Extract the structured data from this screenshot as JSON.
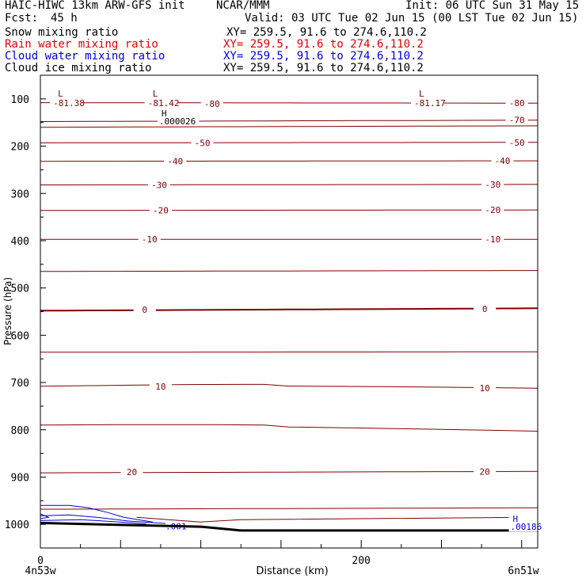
{
  "header": {
    "title_left": "HAIC-HIWC 13km ARW-GFS init",
    "org": "NCAR/MMM",
    "init": "Init: 06 UTC Sun 31 May 15",
    "fcst_label": "Fcst:",
    "fcst_value": "45 h",
    "valid": "Valid: 03 UTC Tue 02 Jun 15 (00 LST Tue 02 Jun 15)",
    "fields": [
      {
        "name": "Snow mixing ratio",
        "xy": "XY= 259.5, 91.6 to 274.6,110.2",
        "color": "#000000"
      },
      {
        "name": "Rain water mixing ratio",
        "xy": "XY= 259.5, 91.6 to 274.6,110.2",
        "color": "#e00000"
      },
      {
        "name": "Cloud water mixing ratio",
        "xy": "XY= 259.5, 91.6 to 274.6,110.2",
        "color": "#0000e0"
      },
      {
        "name": "Cloud ice mixing ratio",
        "xy": "XY= 259.5, 91.6 to 274.6,110.2",
        "color": "#000000"
      }
    ]
  },
  "chart_data": {
    "type": "line",
    "xlabel": "Distance (km)",
    "ylabel": "Pressure (hPa)",
    "xlim": [
      0,
      310
    ],
    "ylim": [
      1050,
      50
    ],
    "x_ticks": [
      0,
      200
    ],
    "y_ticks": [
      100,
      200,
      300,
      400,
      500,
      600,
      700,
      800,
      900,
      1000
    ],
    "x_end_labels": [
      "4n53w",
      "6n51w"
    ],
    "temperature_contours": [
      {
        "label": "-80",
        "left": 108,
        "right": 109,
        "label_pos": [
          [
            107,
            110
          ],
          [
            297,
            109
          ]
        ]
      },
      {
        "label": "-70",
        "left": 148,
        "right": 145,
        "label_pos": [
          [
            92,
            147
          ],
          [
            297,
            145
          ]
        ]
      },
      {
        "label": "-60",
        "left": 160,
        "right": 157,
        "label_pos": []
      },
      {
        "label": "-50",
        "left": 193,
        "right": 192,
        "label_pos": [
          [
            101,
            193
          ],
          [
            297,
            192
          ]
        ]
      },
      {
        "label": "-40",
        "left": 232,
        "right": 231,
        "label_pos": [
          [
            84,
            232
          ],
          [
            288,
            231
          ]
        ]
      },
      {
        "label": "-30",
        "left": 282,
        "right": 281,
        "label_pos": [
          [
            74,
            282
          ],
          [
            282,
            281
          ]
        ]
      },
      {
        "label": "-20",
        "left": 336,
        "right": 335,
        "label_pos": [
          [
            75,
            336
          ],
          [
            282,
            335
          ]
        ]
      },
      {
        "label": "-10",
        "left": 397,
        "right": 397,
        "label_pos": [
          [
            68,
            397
          ],
          [
            282,
            397
          ]
        ]
      },
      {
        "label": "",
        "left": 465,
        "right": 463,
        "label_pos": []
      },
      {
        "label": "0",
        "left": 548,
        "right": 543,
        "label_pos": [
          [
            65,
            546
          ],
          [
            277,
            544
          ]
        ]
      },
      {
        "label": "",
        "left": 636,
        "right": 635,
        "label_pos": []
      },
      {
        "label": "10",
        "left": 708,
        "right": 712,
        "label_pos": [
          [
            75,
            708
          ],
          [
            277,
            712
          ]
        ]
      },
      {
        "label": "",
        "left": 790,
        "right": 803,
        "label_pos": []
      },
      {
        "label": "20",
        "left": 891,
        "right": 888,
        "label_pos": [
          [
            57,
            889
          ],
          [
            277,
            888
          ]
        ]
      },
      {
        "label": "",
        "left": 968,
        "right": 965,
        "label_pos": []
      }
    ],
    "min_labels": [
      {
        "text": "L",
        "sub": "-81.38",
        "x": 7,
        "p": 100
      },
      {
        "text": "L",
        "sub": "-81.42",
        "x": 66,
        "p": 100
      },
      {
        "text": "L",
        "sub": "-81.17",
        "x": 232,
        "p": 100
      }
    ],
    "max_labels": [
      {
        "text": "H",
        "sub": ".000026",
        "x": 74,
        "p": 137
      },
      {
        "text": "H",
        "sub": ".00186",
        "x": 293,
        "p": 995
      }
    ],
    "cloud_water_label": ".001",
    "terrain_surface_p": [
      [
        0,
        997
      ],
      [
        60,
        1002
      ],
      [
        100,
        1005
      ],
      [
        125,
        1013
      ],
      [
        310,
        1013
      ]
    ]
  }
}
